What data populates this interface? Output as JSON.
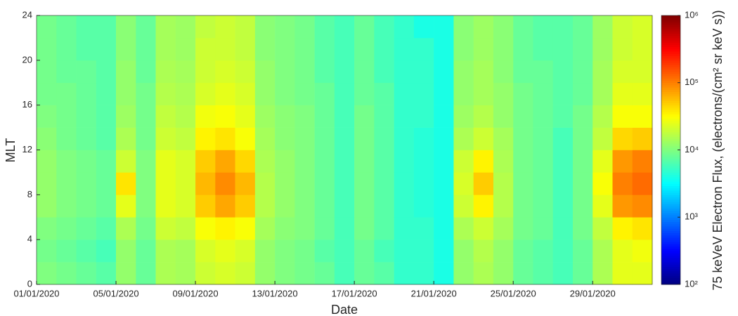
{
  "chart_data": {
    "type": "heatmap",
    "xlabel": "Date",
    "ylabel": "MLT",
    "x": [
      0,
      1,
      2,
      3,
      4,
      5,
      6,
      7,
      8,
      9,
      10,
      11,
      12,
      13,
      14,
      15,
      16,
      17,
      18,
      19,
      20,
      21,
      22,
      23,
      24,
      25,
      26,
      27,
      28,
      29,
      30,
      31
    ],
    "y": [
      0,
      2,
      4,
      6,
      8,
      10,
      12,
      14,
      16,
      18,
      20,
      22,
      24
    ],
    "xlim": [
      0,
      31
    ],
    "ylim": [
      0,
      24
    ],
    "xticks": [
      {
        "value": 0,
        "label": "01/01/2020"
      },
      {
        "value": 4,
        "label": "05/01/2020"
      },
      {
        "value": 8,
        "label": "09/01/2020"
      },
      {
        "value": 12,
        "label": "13/01/2020"
      },
      {
        "value": 16,
        "label": "17/01/2020"
      },
      {
        "value": 20,
        "label": "21/01/2020"
      },
      {
        "value": 24,
        "label": "25/01/2020"
      },
      {
        "value": 28,
        "label": "29/01/2020"
      }
    ],
    "yticks": [
      0,
      4,
      8,
      12,
      16,
      20,
      24
    ],
    "z": [
      [
        10000,
        9000,
        8000,
        7000,
        12000,
        8000,
        15000,
        14000,
        20000,
        22000,
        20000,
        12000,
        10000,
        9000,
        8000,
        6000,
        8000,
        7000,
        5000,
        5000,
        4000,
        12000,
        15000,
        12000,
        8000,
        7000,
        6000,
        8000,
        15000,
        25000,
        25000
      ],
      [
        9000,
        8000,
        7000,
        6000,
        12000,
        8000,
        15000,
        14000,
        22000,
        25000,
        22000,
        12000,
        10000,
        9000,
        7000,
        6000,
        8000,
        6000,
        5000,
        5000,
        4000,
        12000,
        16000,
        12000,
        8000,
        7000,
        6000,
        8000,
        15000,
        25000,
        28000
      ],
      [
        10000,
        9000,
        8000,
        7000,
        15000,
        9000,
        20000,
        18000,
        30000,
        35000,
        30000,
        14000,
        11000,
        10000,
        8000,
        6000,
        9000,
        7000,
        5000,
        5000,
        4000,
        15000,
        20000,
        14000,
        9000,
        8000,
        6000,
        9000,
        18000,
        35000,
        40000
      ],
      [
        12000,
        10000,
        9000,
        8000,
        25000,
        10000,
        25000,
        22000,
        50000,
        70000,
        50000,
        16000,
        12000,
        10000,
        8000,
        6000,
        9000,
        7000,
        5000,
        4500,
        4000,
        20000,
        35000,
        16000,
        9000,
        8000,
        6000,
        9000,
        25000,
        80000,
        90000
      ],
      [
        12000,
        10000,
        9000,
        8000,
        40000,
        10000,
        25000,
        22000,
        60000,
        90000,
        60000,
        16000,
        12000,
        10000,
        8000,
        6000,
        9000,
        7000,
        5000,
        4500,
        4000,
        22000,
        50000,
        16000,
        9000,
        8000,
        6000,
        9000,
        30000,
        100000,
        120000
      ],
      [
        12000,
        10000,
        9000,
        8000,
        20000,
        10000,
        25000,
        22000,
        50000,
        70000,
        45000,
        15000,
        12000,
        10000,
        8000,
        6000,
        9000,
        7000,
        5000,
        4500,
        4000,
        20000,
        35000,
        15000,
        9000,
        8000,
        6000,
        9000,
        25000,
        80000,
        100000
      ],
      [
        11000,
        9000,
        8000,
        7000,
        15000,
        9000,
        20000,
        18000,
        35000,
        40000,
        30000,
        14000,
        11000,
        10000,
        8000,
        6000,
        9000,
        7000,
        5000,
        4500,
        4000,
        15000,
        20000,
        14000,
        9000,
        8000,
        6000,
        9000,
        18000,
        45000,
        50000
      ],
      [
        10000,
        9000,
        8000,
        7000,
        13000,
        9000,
        18000,
        16000,
        28000,
        30000,
        25000,
        13000,
        11000,
        10000,
        8000,
        6000,
        9000,
        7000,
        5000,
        5000,
        4000,
        13000,
        16000,
        12000,
        9000,
        8000,
        7000,
        9000,
        16000,
        30000,
        30000
      ],
      [
        9000,
        9000,
        8000,
        7000,
        12000,
        9000,
        16000,
        15000,
        22000,
        25000,
        22000,
        12000,
        10000,
        9000,
        8000,
        6000,
        8000,
        7000,
        5000,
        5000,
        4000,
        12000,
        14000,
        12000,
        9000,
        8000,
        7000,
        8000,
        14000,
        25000,
        25000
      ],
      [
        9000,
        8000,
        8000,
        7000,
        12000,
        8000,
        15000,
        14000,
        20000,
        22000,
        20000,
        12000,
        10000,
        9000,
        7000,
        6000,
        8000,
        6000,
        5000,
        5000,
        4000,
        12000,
        14000,
        11000,
        8000,
        8000,
        7000,
        8000,
        14000,
        22000,
        22000
      ],
      [
        9000,
        8000,
        7000,
        7000,
        11000,
        8000,
        14000,
        13000,
        20000,
        20000,
        18000,
        11000,
        10000,
        9000,
        7000,
        6000,
        8000,
        6000,
        5000,
        5000,
        4000,
        11000,
        13000,
        11000,
        8000,
        7000,
        7000,
        8000,
        13000,
        20000,
        22000
      ],
      [
        9000,
        8000,
        7000,
        7000,
        11000,
        8000,
        14000,
        13000,
        18000,
        20000,
        18000,
        11000,
        10000,
        9000,
        7000,
        6000,
        8000,
        6000,
        5000,
        4000,
        4000,
        11000,
        13000,
        11000,
        8000,
        7000,
        7000,
        8000,
        13000,
        20000,
        22000
      ]
    ],
    "colorbar": {
      "label": "75 keVeV Electron Flux, (electrons/(cm² sr keV s))",
      "lim": [
        100,
        1000000
      ],
      "log": true,
      "colormap": "jet",
      "ticks": [
        {
          "value": 100,
          "label": "10²"
        },
        {
          "value": 1000,
          "label": "10³"
        },
        {
          "value": 10000,
          "label": "10⁴"
        },
        {
          "value": 100000,
          "label": "10⁵"
        },
        {
          "value": 1000000,
          "label": "10⁶"
        }
      ]
    }
  }
}
